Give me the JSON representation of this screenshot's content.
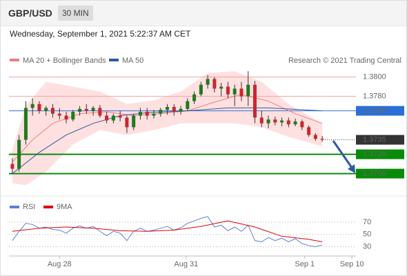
{
  "header": {
    "symbol": "GBP/USD",
    "timeframe": "30 MIN",
    "datetime": "Wednesday, September 1, 2021 5:22:37 AM CET"
  },
  "chart_data": [
    {
      "type": "candlestick",
      "credit": "Research © 2021 Trading Central",
      "up_color": "#1f7a1f",
      "down_color": "#c8282d",
      "x": [
        0,
        1,
        2,
        3,
        4,
        5,
        6,
        7,
        8,
        9,
        10,
        11,
        12,
        13,
        14,
        15,
        16,
        17,
        18,
        19,
        20,
        21,
        22,
        23,
        24,
        25,
        26,
        27,
        28,
        29,
        30,
        31,
        32,
        33,
        34,
        35,
        36,
        37,
        38,
        39,
        40,
        41,
        42,
        43,
        44,
        45,
        46
      ],
      "open": [
        1.371,
        1.3705,
        1.3735,
        1.3768,
        1.3772,
        1.3765,
        1.3768,
        1.3762,
        1.376,
        1.3756,
        1.3764,
        1.3767,
        1.3765,
        1.3768,
        1.376,
        1.3755,
        1.376,
        1.3758,
        1.3748,
        1.376,
        1.3764,
        1.376,
        1.3762,
        1.3766,
        1.3769,
        1.3764,
        1.3767,
        1.3775,
        1.3782,
        1.3792,
        1.3798,
        1.3788,
        1.379,
        1.3782,
        1.3788,
        1.378,
        1.3792,
        1.3758,
        1.3752,
        1.3756,
        1.3753,
        1.3755,
        1.3751,
        1.3754,
        1.3748,
        1.374,
        1.3736
      ],
      "high": [
        1.3716,
        1.374,
        1.3775,
        1.3778,
        1.3775,
        1.377,
        1.3772,
        1.3768,
        1.3764,
        1.3766,
        1.377,
        1.3772,
        1.377,
        1.3771,
        1.3764,
        1.3762,
        1.3765,
        1.376,
        1.3762,
        1.3768,
        1.3768,
        1.3766,
        1.3768,
        1.3772,
        1.3772,
        1.377,
        1.3778,
        1.3785,
        1.3795,
        1.3802,
        1.38,
        1.3794,
        1.3795,
        1.3792,
        1.3795,
        1.3806,
        1.3796,
        1.3765,
        1.376,
        1.3759,
        1.3758,
        1.3758,
        1.3757,
        1.3756,
        1.375,
        1.3742,
        1.3739
      ],
      "low": [
        1.37,
        1.3702,
        1.373,
        1.376,
        1.3762,
        1.376,
        1.3758,
        1.3756,
        1.3752,
        1.3754,
        1.376,
        1.3762,
        1.376,
        1.3758,
        1.3752,
        1.3752,
        1.3754,
        1.3742,
        1.3745,
        1.3756,
        1.3756,
        1.3757,
        1.3759,
        1.3761,
        1.376,
        1.3761,
        1.3765,
        1.3772,
        1.378,
        1.3788,
        1.3784,
        1.378,
        1.3778,
        1.377,
        1.3775,
        1.377,
        1.3752,
        1.3748,
        1.3747,
        1.375,
        1.3749,
        1.3748,
        1.3749,
        1.3745,
        1.3738,
        1.3734,
        1.3733
      ],
      "close": [
        1.3705,
        1.3735,
        1.3768,
        1.3772,
        1.3765,
        1.3768,
        1.3762,
        1.376,
        1.3756,
        1.3764,
        1.3767,
        1.3765,
        1.3768,
        1.376,
        1.3755,
        1.376,
        1.3758,
        1.3748,
        1.376,
        1.3764,
        1.376,
        1.3762,
        1.3766,
        1.3769,
        1.3764,
        1.3767,
        1.3775,
        1.3782,
        1.3792,
        1.3798,
        1.3788,
        1.379,
        1.3782,
        1.3788,
        1.378,
        1.3792,
        1.3758,
        1.3752,
        1.3756,
        1.3753,
        1.3755,
        1.3751,
        1.3754,
        1.3748,
        1.374,
        1.3736,
        1.3735
      ],
      "overlays": [
        {
          "name": "MA 20 + Bollinger Bands",
          "color": "#f07c7c",
          "band_color": "#ffd6d6",
          "x": [
            0,
            3,
            6,
            10,
            14,
            18,
            22,
            26,
            30,
            34,
            38,
            42,
            46
          ],
          "values": [
            1.3712,
            1.3735,
            1.3752,
            1.3762,
            1.3764,
            1.376,
            1.3762,
            1.3765,
            1.3774,
            1.3782,
            1.3775,
            1.3762,
            1.3752
          ],
          "band_x": [
            0,
            2,
            5,
            9,
            13,
            17,
            21,
            25,
            29,
            33,
            37,
            41,
            46
          ],
          "upper": [
            1.3725,
            1.377,
            1.3795,
            1.379,
            1.3785,
            1.3772,
            1.3776,
            1.3785,
            1.3804,
            1.3806,
            1.3795,
            1.3772,
            1.3752
          ],
          "lower": [
            1.369,
            1.3688,
            1.3702,
            1.373,
            1.3745,
            1.374,
            1.3745,
            1.3752,
            1.3752,
            1.3752,
            1.3748,
            1.3738,
            1.3728
          ]
        },
        {
          "name": "MA 50",
          "color": "#2b5aa0",
          "x": [
            0,
            4,
            8,
            12,
            16,
            20,
            26,
            32,
            38,
            46
          ],
          "values": [
            1.37,
            1.3722,
            1.374,
            1.3752,
            1.376,
            1.3763,
            1.3765,
            1.3768,
            1.3768,
            1.3765
          ]
        }
      ],
      "levels": [
        {
          "value": 1.38,
          "label": "1.3800",
          "color": "#f4a0a0",
          "style": "plain"
        },
        {
          "value": 1.378,
          "label": "1.3780",
          "color": "#f4a0a0",
          "style": "plain"
        },
        {
          "value": 1.3765,
          "label": "1.3765",
          "color": "#2b6fd6",
          "style": "boxed"
        },
        {
          "value": 1.3735,
          "label": "1.3735",
          "color": "#333333",
          "style": "dotted"
        },
        {
          "value": 1.372,
          "label": "1.3720",
          "color": "#0a8a0a",
          "style": "bold"
        },
        {
          "value": 1.37,
          "label": "1.3700",
          "color": "#0a8a0a",
          "style": "bold"
        }
      ],
      "xlim": [
        -0.5,
        51
      ],
      "ylim": [
        1.3679,
        1.3829
      ],
      "xticks": [
        {
          "value": 7,
          "label": "Aug 28"
        },
        {
          "value": 25.8,
          "label": "Aug 31"
        },
        {
          "value": 43.4,
          "label": "Sep 1"
        },
        {
          "value": 50.4,
          "label": "Sep 10"
        }
      ]
    },
    {
      "type": "line",
      "series": [
        {
          "name": "RSI",
          "color": "#5b7fd6",
          "x": [
            0,
            1,
            2,
            3,
            4,
            5,
            6,
            7,
            8,
            9,
            10,
            11,
            12,
            13,
            14,
            15,
            16,
            17,
            18,
            19,
            20,
            21,
            22,
            23,
            24,
            25,
            26,
            27,
            28,
            29,
            30,
            31,
            32,
            33,
            34,
            35,
            36,
            37,
            38,
            39,
            40,
            41,
            42,
            43,
            44,
            45,
            46
          ],
          "values": [
            40,
            55,
            68,
            66,
            60,
            62,
            58,
            57,
            52,
            60,
            64,
            60,
            63,
            55,
            48,
            55,
            52,
            40,
            55,
            60,
            55,
            57,
            60,
            63,
            57,
            61,
            68,
            72,
            76,
            79,
            62,
            65,
            56,
            62,
            55,
            65,
            40,
            38,
            45,
            40,
            44,
            38,
            43,
            35,
            32,
            30,
            33
          ]
        },
        {
          "name": "9MA",
          "color": "#e00000",
          "x": [
            0,
            4,
            8,
            12,
            16,
            20,
            24,
            28,
            32,
            36,
            40,
            44,
            46
          ],
          "values": [
            55,
            60,
            62,
            60,
            56,
            55,
            57,
            63,
            72,
            62,
            47,
            42,
            38
          ]
        }
      ],
      "xlim": [
        -0.5,
        51
      ],
      "ylim": [
        15,
        90
      ],
      "yticks": [
        70,
        50,
        30
      ]
    }
  ]
}
